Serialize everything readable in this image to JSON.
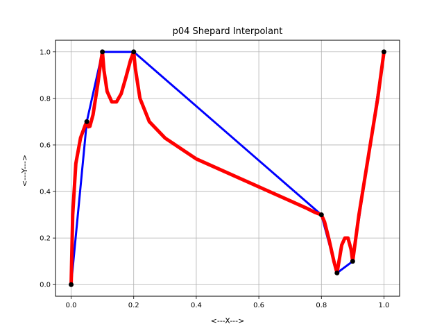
{
  "chart_data": {
    "type": "line",
    "title": "p04 Shepard Interpolant",
    "xlabel": "<---X--->",
    "ylabel": "<---Y--->",
    "xlim": [
      -0.05,
      1.05
    ],
    "ylim": [
      -0.05,
      1.05
    ],
    "xticks": [
      0.0,
      0.2,
      0.4,
      0.6,
      0.8,
      1.0
    ],
    "yticks": [
      0.0,
      0.2,
      0.4,
      0.6,
      0.8,
      1.0
    ],
    "xtick_labels": [
      "0.0",
      "0.2",
      "0.4",
      "0.6",
      "0.8",
      "1.0"
    ],
    "ytick_labels": [
      "0.0",
      "0.2",
      "0.4",
      "0.6",
      "0.8",
      "1.0"
    ],
    "grid": true,
    "series": [
      {
        "kind": "data-polyline",
        "color": "#0000ff",
        "x": [
          0.0,
          0.05,
          0.1,
          0.2,
          0.8,
          0.85,
          0.9,
          1.0
        ],
        "y": [
          0.0,
          0.7,
          1.0,
          1.0,
          0.3,
          0.05,
          0.1,
          1.0
        ]
      },
      {
        "kind": "interpolant",
        "color": "#ff0000",
        "x": [
          0.0,
          0.005,
          0.015,
          0.03,
          0.045,
          0.05,
          0.055,
          0.06,
          0.07,
          0.085,
          0.095,
          0.1,
          0.105,
          0.115,
          0.13,
          0.145,
          0.16,
          0.175,
          0.19,
          0.2,
          0.205,
          0.22,
          0.25,
          0.3,
          0.4,
          0.5,
          0.6,
          0.7,
          0.75,
          0.78,
          0.8,
          0.81,
          0.825,
          0.84,
          0.85,
          0.855,
          0.865,
          0.875,
          0.885,
          0.895,
          0.9,
          0.92,
          0.95,
          0.98,
          1.0
        ],
        "y": [
          0.0,
          0.3,
          0.52,
          0.63,
          0.685,
          0.7,
          0.678,
          0.68,
          0.73,
          0.86,
          0.96,
          1.0,
          0.92,
          0.83,
          0.785,
          0.785,
          0.82,
          0.89,
          0.965,
          1.0,
          0.93,
          0.8,
          0.7,
          0.63,
          0.54,
          0.48,
          0.42,
          0.36,
          0.33,
          0.31,
          0.3,
          0.27,
          0.19,
          0.1,
          0.05,
          0.09,
          0.17,
          0.2,
          0.2,
          0.15,
          0.1,
          0.3,
          0.55,
          0.8,
          1.0
        ]
      },
      {
        "kind": "data-points",
        "color": "#000000",
        "x": [
          0.0,
          0.05,
          0.1,
          0.2,
          0.8,
          0.85,
          0.9,
          1.0
        ],
        "y": [
          0.0,
          0.7,
          1.0,
          1.0,
          0.3,
          0.05,
          0.1,
          1.0
        ]
      }
    ]
  }
}
